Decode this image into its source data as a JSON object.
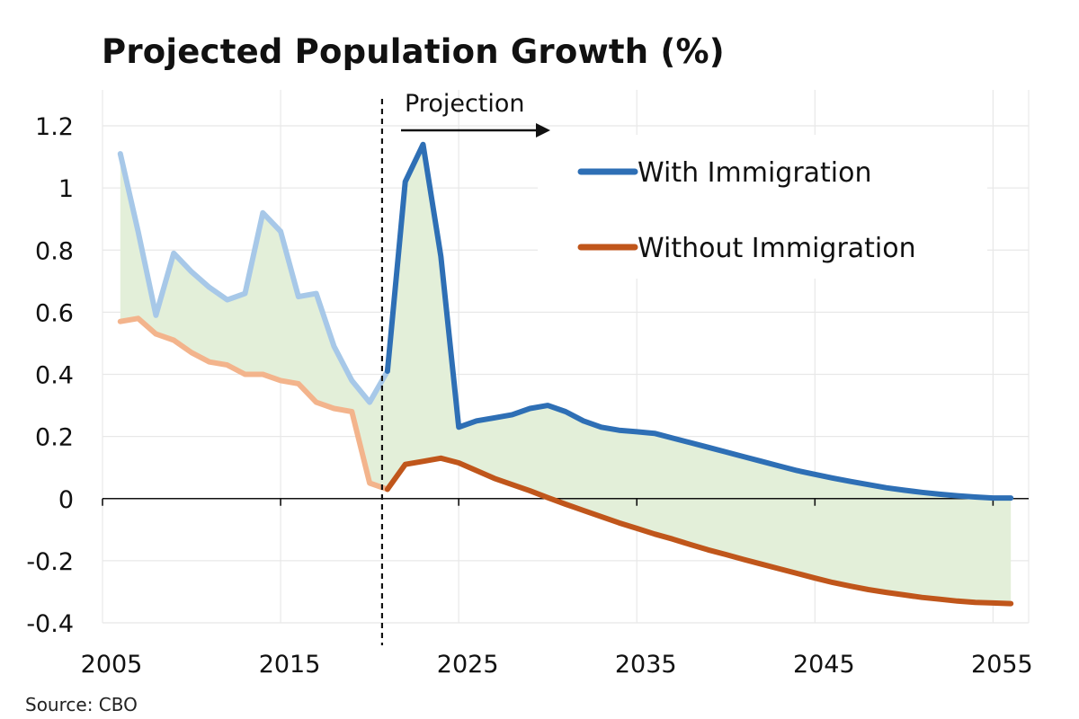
{
  "chart_data": {
    "type": "line",
    "title": "Projected Population Growth (%)",
    "source": "Source: CBO",
    "xlabel": "",
    "ylabel": "",
    "xlim": [
      2005,
      2057
    ],
    "ylim": [
      -0.4,
      1.2
    ],
    "x_ticks": [
      2005,
      2015,
      2025,
      2035,
      2045,
      2055
    ],
    "x_tick_labels": [
      "2005",
      "2015",
      "2025",
      "2035",
      "2045",
      "2055"
    ],
    "y_ticks": [
      -0.4,
      -0.2,
      0,
      0.2,
      0.4,
      0.6,
      0.8,
      1,
      1.2
    ],
    "y_tick_labels": [
      "-0.4",
      "-0.2",
      "0",
      "0.2",
      "0.4",
      "0.6",
      "0.8",
      "1",
      "1.2"
    ],
    "grid": true,
    "legend_position": "top-right",
    "projection_start": 2021,
    "annotation": "Projection",
    "fill_between": {
      "color": "#e3efd9"
    },
    "series": [
      {
        "name": "With Immigration",
        "color": "#2e6fb5",
        "historical_color": "#a7c8e8",
        "x": [
          2006,
          2007,
          2008,
          2009,
          2010,
          2011,
          2012,
          2013,
          2014,
          2015,
          2016,
          2017,
          2018,
          2019,
          2020,
          2021,
          2022,
          2023,
          2024,
          2025,
          2026,
          2027,
          2028,
          2029,
          2030,
          2031,
          2032,
          2033,
          2034,
          2035,
          2036,
          2037,
          2038,
          2039,
          2040,
          2041,
          2042,
          2043,
          2044,
          2045,
          2046,
          2047,
          2048,
          2049,
          2050,
          2051,
          2052,
          2053,
          2054,
          2055,
          2056
        ],
        "values": [
          1.11,
          0.86,
          0.59,
          0.79,
          0.73,
          0.68,
          0.64,
          0.66,
          0.92,
          0.86,
          0.65,
          0.66,
          0.49,
          0.38,
          0.31,
          0.41,
          1.02,
          1.14,
          0.78,
          0.23,
          0.25,
          0.26,
          0.27,
          0.29,
          0.3,
          0.28,
          0.25,
          0.23,
          0.22,
          0.215,
          0.21,
          0.195,
          0.18,
          0.165,
          0.15,
          0.135,
          0.12,
          0.105,
          0.09,
          0.078,
          0.066,
          0.055,
          0.045,
          0.035,
          0.027,
          0.02,
          0.014,
          0.009,
          0.005,
          0.002,
          0.002
        ]
      },
      {
        "name": "Without Immigration",
        "color": "#c0561b",
        "historical_color": "#f3b48c",
        "x": [
          2006,
          2007,
          2008,
          2009,
          2010,
          2011,
          2012,
          2013,
          2014,
          2015,
          2016,
          2017,
          2018,
          2019,
          2020,
          2021,
          2022,
          2023,
          2024,
          2025,
          2026,
          2027,
          2028,
          2029,
          2030,
          2031,
          2032,
          2033,
          2034,
          2035,
          2036,
          2037,
          2038,
          2039,
          2040,
          2041,
          2042,
          2043,
          2044,
          2045,
          2046,
          2047,
          2048,
          2049,
          2050,
          2051,
          2052,
          2053,
          2054,
          2055,
          2056
        ],
        "values": [
          0.57,
          0.58,
          0.53,
          0.51,
          0.47,
          0.44,
          0.43,
          0.4,
          0.4,
          0.38,
          0.37,
          0.31,
          0.29,
          0.28,
          0.05,
          0.03,
          0.11,
          0.12,
          0.13,
          0.115,
          0.09,
          0.065,
          0.045,
          0.025,
          0.003,
          -0.018,
          -0.038,
          -0.058,
          -0.078,
          -0.096,
          -0.114,
          -0.13,
          -0.148,
          -0.165,
          -0.18,
          -0.196,
          -0.211,
          -0.226,
          -0.241,
          -0.256,
          -0.27,
          -0.282,
          -0.293,
          -0.302,
          -0.31,
          -0.318,
          -0.324,
          -0.33,
          -0.334,
          -0.336,
          -0.338
        ]
      }
    ]
  }
}
